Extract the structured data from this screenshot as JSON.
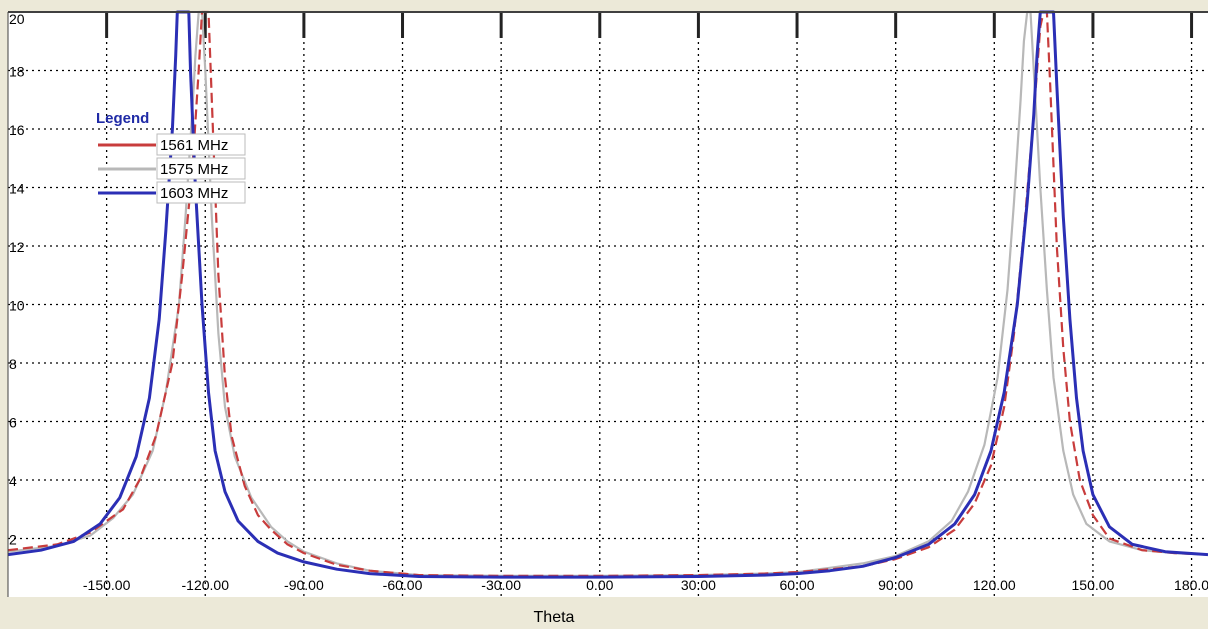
{
  "chart_data": {
    "type": "line",
    "title": "",
    "xlabel": "Theta",
    "ylabel": "",
    "xlim": [
      -180,
      185
    ],
    "ylim": [
      0,
      20
    ],
    "x_ticks": [
      -150,
      -120,
      -90,
      -60,
      -30,
      0,
      30,
      60,
      90,
      120,
      150,
      180
    ],
    "x_tick_labels": [
      "-150.00",
      "-120.00",
      "-90.00",
      "-60.00",
      "-30.00",
      "0.00",
      "30.00",
      "60.00",
      "90.00",
      "120.00",
      "150.00",
      "180.0"
    ],
    "y_ticks": [
      2,
      4,
      6,
      8,
      10,
      12,
      14,
      16,
      18,
      20
    ],
    "y_tick_labels": [
      "2",
      "4",
      "6",
      "8",
      "10",
      "12",
      "14",
      "16",
      "18",
      "20"
    ],
    "grid": true,
    "legend": {
      "title": "Legend",
      "position": "top-left"
    },
    "series": [
      {
        "name": "1561 MHz",
        "color": "#c83c3c",
        "style": "dashed",
        "points": [
          [
            -180,
            1.6
          ],
          [
            -165,
            1.8
          ],
          [
            -155,
            2.2
          ],
          [
            -145,
            3.0
          ],
          [
            -140,
            4.0
          ],
          [
            -135,
            5.5
          ],
          [
            -130,
            8.0
          ],
          [
            -127,
            11.0
          ],
          [
            -124,
            14.5
          ],
          [
            -122,
            18.0
          ],
          [
            -121,
            20
          ],
          [
            -119,
            20
          ],
          [
            -118,
            17.0
          ],
          [
            -116,
            11.0
          ],
          [
            -114,
            7.5
          ],
          [
            -112,
            5.5
          ],
          [
            -108,
            3.8
          ],
          [
            -104,
            2.8
          ],
          [
            -100,
            2.3
          ],
          [
            -95,
            1.8
          ],
          [
            -90,
            1.5
          ],
          [
            -80,
            1.1
          ],
          [
            -70,
            0.9
          ],
          [
            -55,
            0.75
          ],
          [
            -30,
            0.72
          ],
          [
            0,
            0.72
          ],
          [
            30,
            0.75
          ],
          [
            50,
            0.8
          ],
          [
            60,
            0.85
          ],
          [
            70,
            0.95
          ],
          [
            80,
            1.05
          ],
          [
            90,
            1.3
          ],
          [
            100,
            1.7
          ],
          [
            108,
            2.3
          ],
          [
            114,
            3.2
          ],
          [
            119,
            4.5
          ],
          [
            123,
            6.5
          ],
          [
            126,
            9.0
          ],
          [
            129,
            12.5
          ],
          [
            132,
            16.5
          ],
          [
            134,
            19.5
          ],
          [
            135,
            20
          ],
          [
            136,
            20
          ],
          [
            137,
            17.5
          ],
          [
            139,
            12.0
          ],
          [
            141,
            8.5
          ],
          [
            143,
            6.0
          ],
          [
            146,
            4.0
          ],
          [
            150,
            2.8
          ],
          [
            155,
            2.0
          ],
          [
            165,
            1.6
          ],
          [
            175,
            1.5
          ],
          [
            185,
            1.45
          ]
        ]
      },
      {
        "name": "1575 MHz",
        "color": "#b8b8b8",
        "style": "solid",
        "points": [
          [
            -180,
            1.55
          ],
          [
            -165,
            1.75
          ],
          [
            -155,
            2.1
          ],
          [
            -148,
            2.7
          ],
          [
            -142,
            3.5
          ],
          [
            -136,
            5.0
          ],
          [
            -132,
            7.0
          ],
          [
            -128,
            10.0
          ],
          [
            -126,
            13.0
          ],
          [
            -124,
            16.5
          ],
          [
            -123,
            18.5
          ],
          [
            -122,
            20
          ],
          [
            -121,
            20
          ],
          [
            -120,
            18.0
          ],
          [
            -118,
            13.0
          ],
          [
            -116,
            9.0
          ],
          [
            -114,
            6.5
          ],
          [
            -111,
            4.8
          ],
          [
            -106,
            3.4
          ],
          [
            -100,
            2.4
          ],
          [
            -95,
            1.9
          ],
          [
            -90,
            1.55
          ],
          [
            -80,
            1.15
          ],
          [
            -70,
            0.9
          ],
          [
            -55,
            0.75
          ],
          [
            -30,
            0.72
          ],
          [
            0,
            0.72
          ],
          [
            30,
            0.75
          ],
          [
            50,
            0.8
          ],
          [
            60,
            0.85
          ],
          [
            70,
            1.0
          ],
          [
            80,
            1.15
          ],
          [
            90,
            1.4
          ],
          [
            100,
            1.9
          ],
          [
            107,
            2.6
          ],
          [
            112,
            3.6
          ],
          [
            117,
            5.2
          ],
          [
            121,
            7.5
          ],
          [
            124,
            10.5
          ],
          [
            126,
            13.5
          ],
          [
            128,
            17.0
          ],
          [
            129,
            19.0
          ],
          [
            130,
            20
          ],
          [
            131,
            20
          ],
          [
            132,
            18.0
          ],
          [
            134,
            14.0
          ],
          [
            136,
            10.5
          ],
          [
            138,
            7.5
          ],
          [
            141,
            5.0
          ],
          [
            144,
            3.5
          ],
          [
            148,
            2.5
          ],
          [
            155,
            1.9
          ],
          [
            165,
            1.6
          ],
          [
            175,
            1.5
          ],
          [
            185,
            1.45
          ]
        ]
      },
      {
        "name": "1603 MHz",
        "color": "#2b2fb5",
        "style": "solid",
        "points": [
          [
            -180,
            1.45
          ],
          [
            -170,
            1.6
          ],
          [
            -160,
            1.9
          ],
          [
            -152,
            2.5
          ],
          [
            -146,
            3.4
          ],
          [
            -141,
            4.8
          ],
          [
            -137,
            6.8
          ],
          [
            -134,
            9.5
          ],
          [
            -132,
            12.5
          ],
          [
            -130,
            16.0
          ],
          [
            -129,
            18.5
          ],
          [
            -128.5,
            20
          ],
          [
            -125,
            20
          ],
          [
            -124.5,
            18.0
          ],
          [
            -123,
            14.0
          ],
          [
            -121,
            10.0
          ],
          [
            -119,
            7.0
          ],
          [
            -117,
            5.0
          ],
          [
            -114,
            3.6
          ],
          [
            -110,
            2.6
          ],
          [
            -104,
            1.9
          ],
          [
            -98,
            1.5
          ],
          [
            -90,
            1.2
          ],
          [
            -80,
            0.95
          ],
          [
            -70,
            0.8
          ],
          [
            -55,
            0.7
          ],
          [
            -30,
            0.68
          ],
          [
            0,
            0.68
          ],
          [
            30,
            0.7
          ],
          [
            50,
            0.75
          ],
          [
            60,
            0.8
          ],
          [
            70,
            0.9
          ],
          [
            80,
            1.05
          ],
          [
            90,
            1.35
          ],
          [
            100,
            1.8
          ],
          [
            108,
            2.5
          ],
          [
            114,
            3.5
          ],
          [
            119,
            5.0
          ],
          [
            123,
            7.0
          ],
          [
            127,
            10.0
          ],
          [
            130,
            13.5
          ],
          [
            132,
            16.5
          ],
          [
            133,
            18.5
          ],
          [
            134,
            20
          ],
          [
            138,
            20
          ],
          [
            139,
            17.5
          ],
          [
            141,
            13.0
          ],
          [
            143,
            9.5
          ],
          [
            145,
            6.8
          ],
          [
            147,
            5.0
          ],
          [
            150,
            3.5
          ],
          [
            155,
            2.4
          ],
          [
            162,
            1.8
          ],
          [
            172,
            1.55
          ],
          [
            185,
            1.45
          ]
        ]
      }
    ]
  }
}
